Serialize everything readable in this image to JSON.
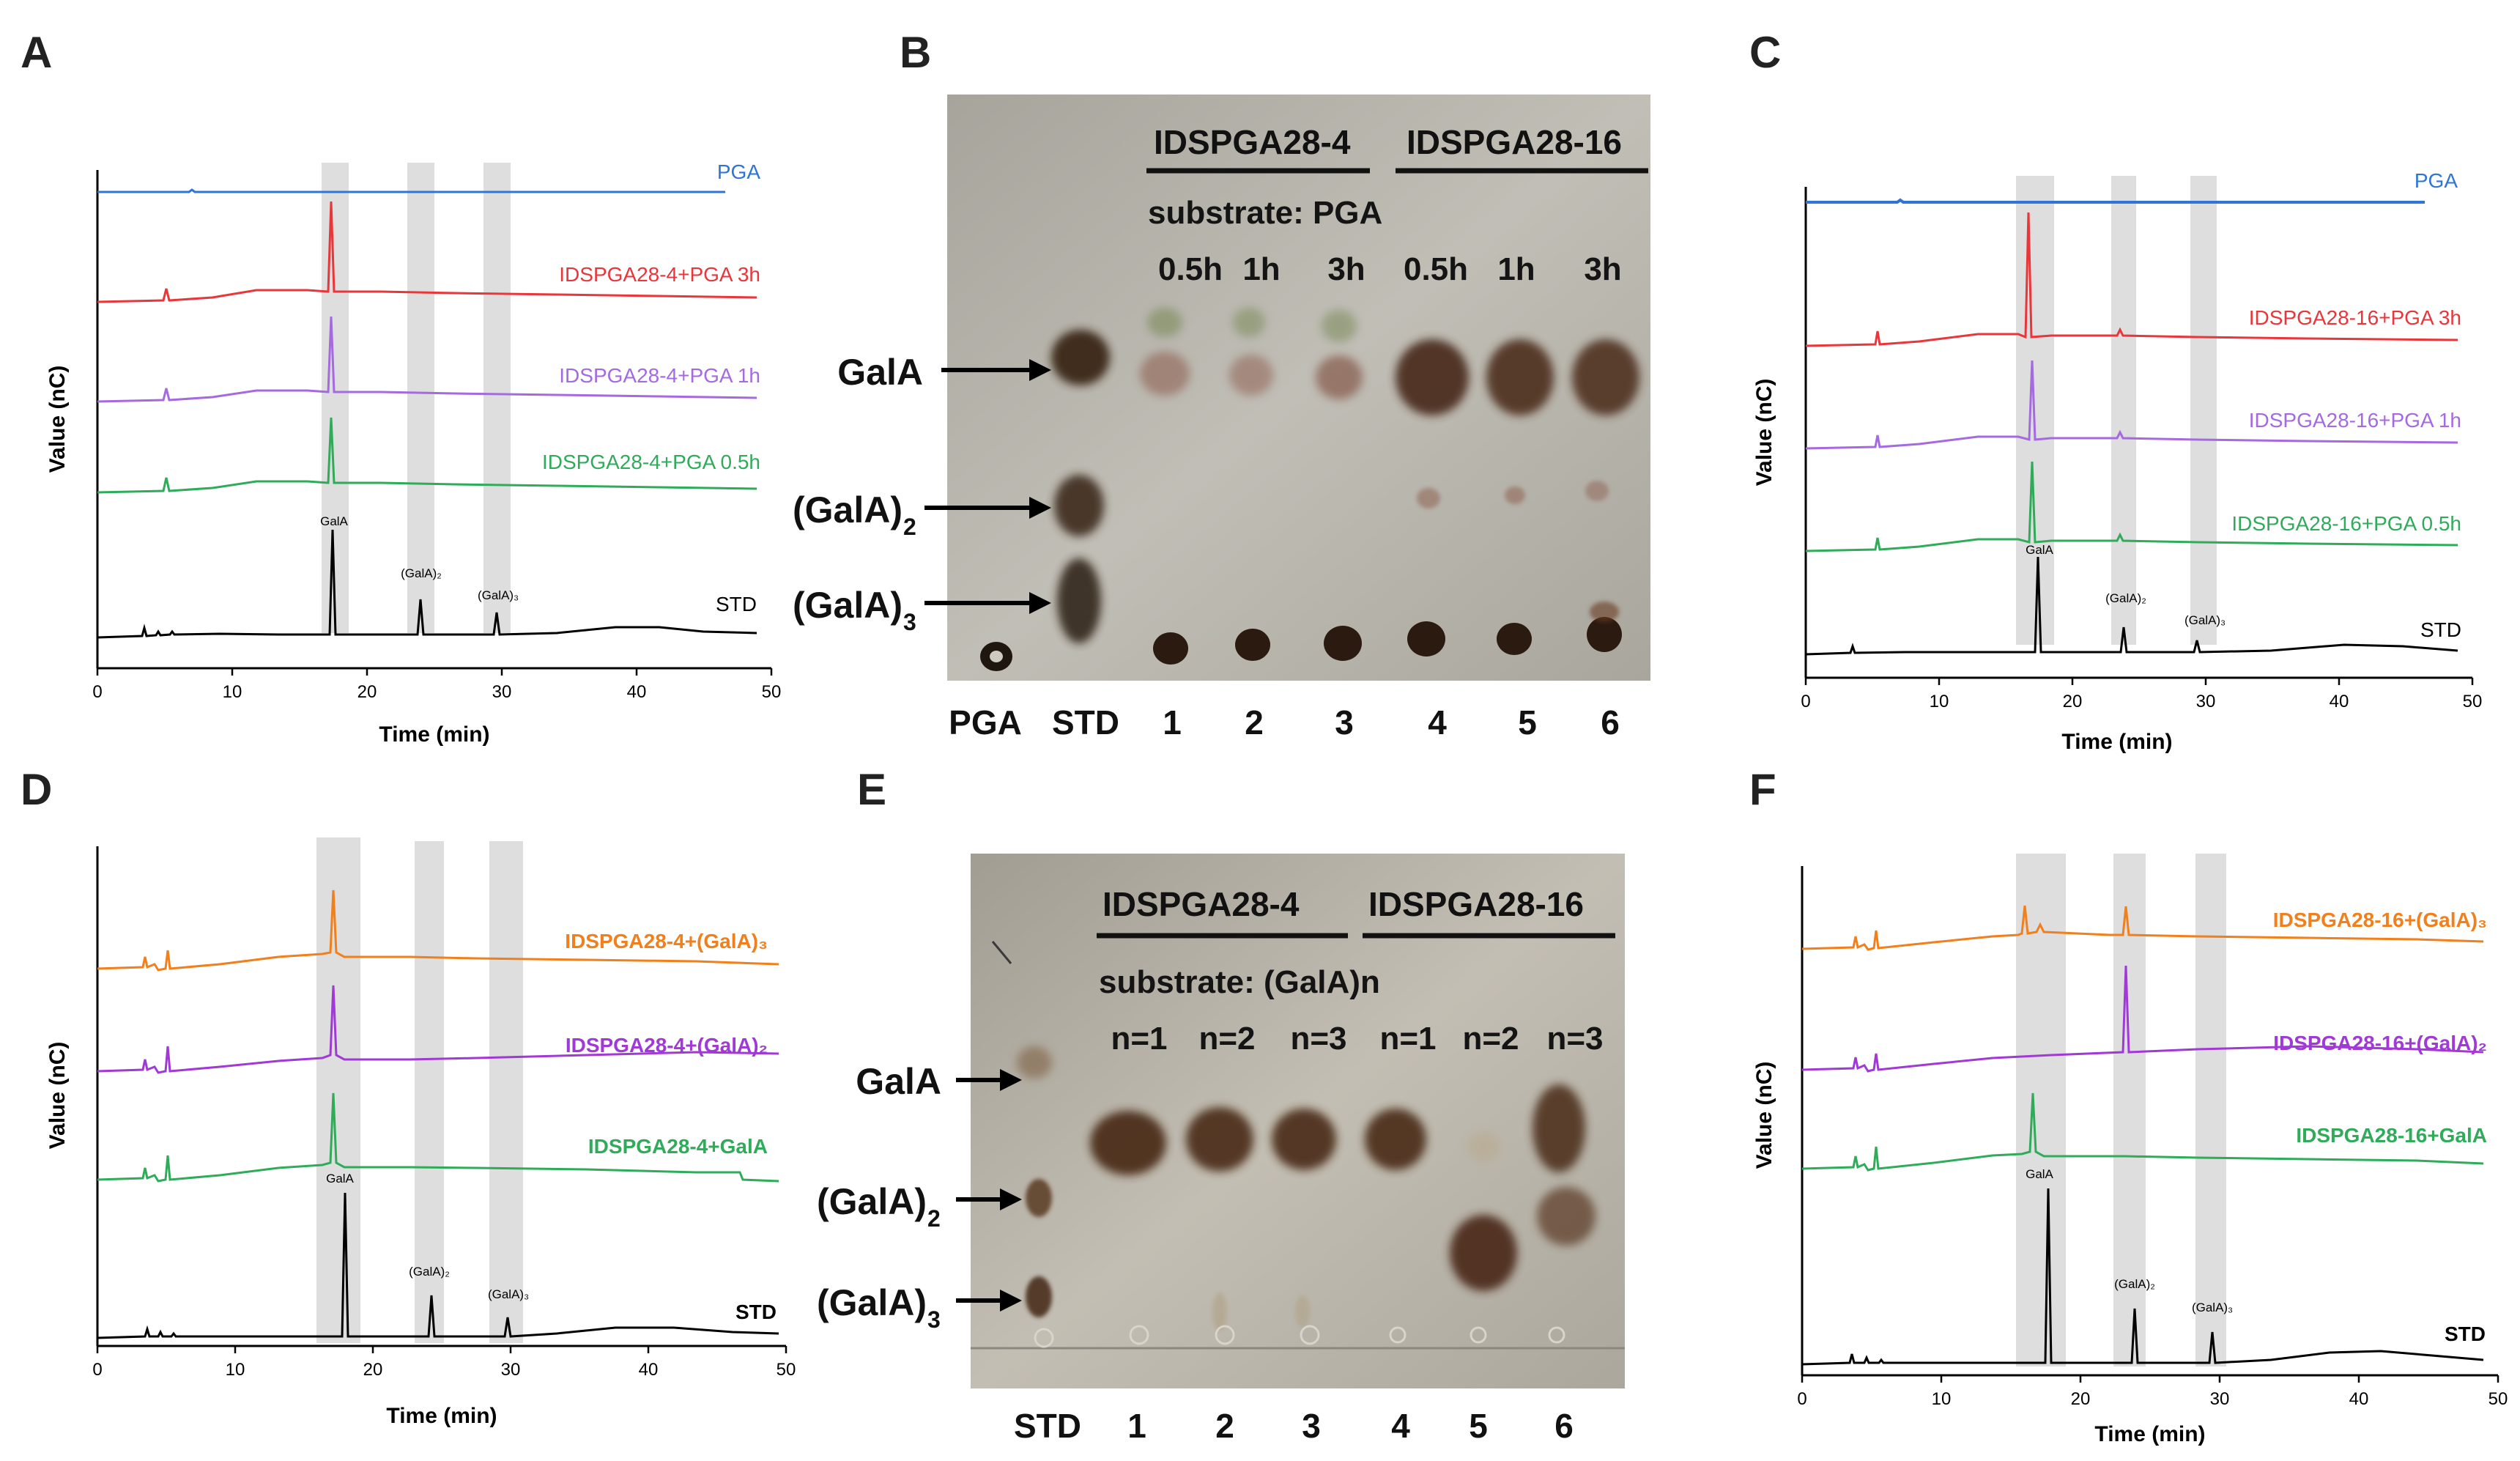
{
  "panels": {
    "A": {
      "label": "A",
      "xlabel": "Time (min)",
      "ylabel": "Value (nC)",
      "ticks": [
        "0",
        "10",
        "20",
        "30",
        "40",
        "50"
      ],
      "peaks": {
        "galA": "GalA",
        "di": "(GalA)₂",
        "tri": "(GalA)₃"
      },
      "traces": [
        {
          "name": "PGA",
          "color": "#2f75d6"
        },
        {
          "name": "IDSPGA28-4+PGA 3h",
          "color": "#e8363a"
        },
        {
          "name": "IDSPGA28-4+PGA 1h",
          "color": "#a569e0"
        },
        {
          "name": "IDSPGA28-4+PGA 0.5h",
          "color": "#2fab5a"
        },
        {
          "name": "STD",
          "color": "#000000"
        }
      ]
    },
    "C": {
      "label": "C",
      "xlabel": "Time (min)",
      "ylabel": "Value (nC)",
      "ticks": [
        "0",
        "10",
        "20",
        "30",
        "40",
        "50"
      ],
      "peaks": {
        "galA": "GalA",
        "di": "(GalA)₂",
        "tri": "(GalA)₃"
      },
      "traces": [
        {
          "name": "PGA",
          "color": "#2f75d6"
        },
        {
          "name": "IDSPGA28-16+PGA 3h",
          "color": "#e8363a"
        },
        {
          "name": "IDSPGA28-16+PGA 1h",
          "color": "#a569e0"
        },
        {
          "name": "IDSPGA28-16+PGA 0.5h",
          "color": "#2fab5a"
        },
        {
          "name": "STD",
          "color": "#000000"
        }
      ]
    },
    "D": {
      "label": "D",
      "xlabel": "Time (min)",
      "ylabel": "Value (nC)",
      "ticks": [
        "0",
        "10",
        "20",
        "30",
        "40",
        "50"
      ],
      "peaks": {
        "galA": "GalA",
        "di": "(GalA)₂",
        "tri": "(GalA)₃"
      },
      "traces": [
        {
          "name": "IDSPGA28-4+(GalA)₃",
          "color": "#f07f1c"
        },
        {
          "name": "IDSPGA28-4+(GalA)₂",
          "color": "#a039d6"
        },
        {
          "name": "IDSPGA28-4+GalA",
          "color": "#2fab5a"
        },
        {
          "name": "STD",
          "color": "#000000"
        }
      ]
    },
    "F": {
      "label": "F",
      "xlabel": "Time (min)",
      "ylabel": "Value (nC)",
      "ticks": [
        "0",
        "10",
        "20",
        "30",
        "40",
        "50"
      ],
      "peaks": {
        "galA": "GalA",
        "di": "(GalA)₂",
        "tri": "(GalA)₃"
      },
      "traces": [
        {
          "name": "IDSPGA28-16+(GalA)₃",
          "color": "#f07f1c"
        },
        {
          "name": "IDSPGA28-16+(GalA)₂",
          "color": "#a039d6"
        },
        {
          "name": "IDSPGA28-16+GalA",
          "color": "#2fab5a"
        },
        {
          "name": "STD",
          "color": "#000000"
        }
      ]
    },
    "B": {
      "label": "B",
      "group1": "IDSPGA28-4",
      "group2": "IDSPGA28-16",
      "substrate": "substrate: PGA",
      "times": [
        "0.5h",
        "1h",
        "3h",
        "0.5h",
        "1h",
        "3h"
      ],
      "compounds": [
        "GalA",
        "(GalA)",
        "(GalA)"
      ],
      "subs": [
        "2",
        "3"
      ],
      "lanes": [
        "PGA",
        "STD",
        "1",
        "2",
        "3",
        "4",
        "5",
        "6"
      ]
    },
    "E": {
      "label": "E",
      "group1": "IDSPGA28-4",
      "group2": "IDSPGA28-16",
      "substrate": "substrate: (GalA)n",
      "times": [
        "n=1",
        "n=2",
        "n=3",
        "n=1",
        "n=2",
        "n=3"
      ],
      "compounds": [
        "GalA",
        "(GalA)",
        "(GalA)"
      ],
      "subs": [
        "2",
        "3"
      ],
      "lanes": [
        "STD",
        "1",
        "2",
        "3",
        "4",
        "5",
        "6"
      ]
    }
  },
  "chart_data": [
    {
      "panel": "A",
      "type": "line",
      "xlabel": "Time (min)",
      "ylabel": "Value (nC)",
      "xlim": [
        0,
        50
      ],
      "highlight_bands_min": [
        [
          16.8,
          18.6
        ],
        [
          23.1,
          24.9
        ],
        [
          29.0,
          30.8
        ]
      ],
      "series": [
        {
          "name": "PGA",
          "baseline": "flat",
          "peaks": []
        },
        {
          "name": "IDSPGA28-4+PGA 3h",
          "peaks": [
            {
              "rt": 17.5,
              "rel_height": 0.75
            }
          ]
        },
        {
          "name": "IDSPGA28-4+PGA 1h",
          "peaks": [
            {
              "rt": 17.5,
              "rel_height": 0.6
            }
          ]
        },
        {
          "name": "IDSPGA28-4+PGA 0.5h",
          "peaks": [
            {
              "rt": 17.5,
              "rel_height": 0.55
            }
          ]
        },
        {
          "name": "STD",
          "peaks": [
            {
              "rt": 17.6,
              "label": "GalA",
              "rel_height": 1.0
            },
            {
              "rt": 24.0,
              "label": "(GalA)₂",
              "rel_height": 0.3
            },
            {
              "rt": 29.6,
              "label": "(GalA)₃",
              "rel_height": 0.2
            }
          ]
        }
      ]
    },
    {
      "panel": "C",
      "type": "line",
      "xlabel": "Time (min)",
      "ylabel": "Value (nC)",
      "xlim": [
        0,
        50
      ],
      "highlight_bands_min": [
        [
          16.2,
          19.0
        ],
        [
          23.0,
          24.8
        ],
        [
          28.8,
          30.8
        ]
      ],
      "series": [
        {
          "name": "PGA",
          "baseline": "flat",
          "peaks": []
        },
        {
          "name": "IDSPGA28-16+PGA 3h",
          "peaks": [
            {
              "rt": 17.1,
              "rel_height": 1.0
            }
          ]
        },
        {
          "name": "IDSPGA28-16+PGA 1h",
          "peaks": [
            {
              "rt": 17.4,
              "rel_height": 0.75
            }
          ]
        },
        {
          "name": "IDSPGA28-16+PGA 0.5h",
          "peaks": [
            {
              "rt": 17.4,
              "rel_height": 0.75
            }
          ]
        },
        {
          "name": "STD",
          "peaks": [
            {
              "rt": 17.6,
              "label": "GalA",
              "rel_height": 0.85
            },
            {
              "rt": 24.0,
              "label": "(GalA)₂",
              "rel_height": 0.25
            },
            {
              "rt": 29.6,
              "label": "(GalA)₃",
              "rel_height": 0.15
            }
          ]
        }
      ]
    },
    {
      "panel": "D",
      "type": "line",
      "xlabel": "Time (min)",
      "ylabel": "Value (nC)",
      "xlim": [
        0,
        50
      ],
      "highlight_bands_min": [
        [
          15.7,
          18.9
        ],
        [
          22.9,
          25.0
        ],
        [
          28.4,
          30.6
        ]
      ],
      "series": [
        {
          "name": "IDSPGA28-4+(GalA)₃",
          "peaks": [
            {
              "rt": 17.2,
              "rel_height": 0.7
            }
          ]
        },
        {
          "name": "IDSPGA28-4+(GalA)₂",
          "peaks": [
            {
              "rt": 17.2,
              "rel_height": 0.75
            }
          ]
        },
        {
          "name": "IDSPGA28-4+GalA",
          "peaks": [
            {
              "rt": 17.2,
              "rel_height": 0.7
            }
          ]
        },
        {
          "name": "STD",
          "peaks": [
            {
              "rt": 17.6,
              "label": "GalA",
              "rel_height": 1.0
            },
            {
              "rt": 24.0,
              "label": "(GalA)₂",
              "rel_height": 0.3
            },
            {
              "rt": 29.6,
              "label": "(GalA)₃",
              "rel_height": 0.18
            }
          ]
        }
      ]
    },
    {
      "panel": "F",
      "type": "line",
      "xlabel": "Time (min)",
      "ylabel": "Value (nC)",
      "xlim": [
        0,
        50
      ],
      "highlight_bands_min": [
        [
          15.6,
          19.1
        ],
        [
          22.8,
          25.1
        ],
        [
          28.7,
          30.8
        ]
      ],
      "series": [
        {
          "name": "IDSPGA28-16+(GalA)₃",
          "peaks": [
            {
              "rt": 16.2,
              "rel_height": 0.35
            },
            {
              "rt": 23.6,
              "rel_height": 0.3
            }
          ]
        },
        {
          "name": "IDSPGA28-16+(GalA)₂",
          "peaks": [
            {
              "rt": 23.6,
              "rel_height": 0.85
            }
          ]
        },
        {
          "name": "IDSPGA28-16+GalA",
          "peaks": [
            {
              "rt": 17.2,
              "rel_height": 0.55
            }
          ]
        },
        {
          "name": "STD",
          "peaks": [
            {
              "rt": 17.8,
              "label": "GalA",
              "rel_height": 1.0
            },
            {
              "rt": 24.0,
              "label": "(GalA)₂",
              "rel_height": 0.3
            },
            {
              "rt": 29.6,
              "label": "(GalA)₃",
              "rel_height": 0.18
            }
          ]
        }
      ]
    }
  ]
}
